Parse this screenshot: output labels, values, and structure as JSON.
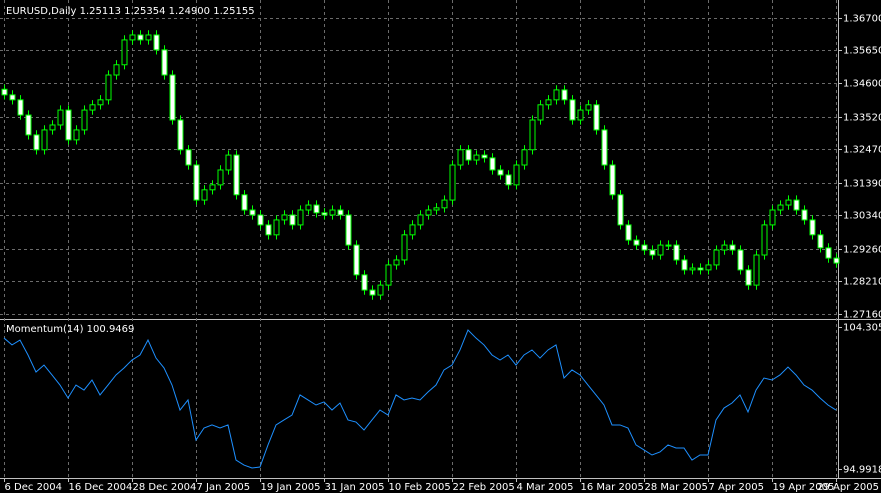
{
  "chart_data": [
    {
      "type": "candlestick",
      "title": "EURUSD,Daily  1.25113 1.25354 1.24900 1.25155",
      "categories": [
        "6 Dec 2004",
        null,
        null,
        null,
        null,
        null,
        null,
        null,
        "16 Dec 2004",
        null,
        null,
        null,
        null,
        null,
        null,
        null,
        "28 Dec 2004",
        null,
        null,
        null,
        null,
        null,
        null,
        null,
        "7 Jan 2005",
        null,
        null,
        null,
        null,
        null,
        null,
        null,
        "19 Jan 2005",
        null,
        null,
        null,
        null,
        null,
        null,
        null,
        "31 Jan 2005",
        null,
        null,
        null,
        null,
        null,
        null,
        null,
        "10 Feb 2005",
        null,
        null,
        null,
        null,
        null,
        null,
        null,
        "22 Feb 2005",
        null,
        null,
        null,
        null,
        null,
        null,
        null,
        "4 Mar 2005",
        null,
        null,
        null,
        null,
        null,
        null,
        null,
        "16 Mar 2005",
        null,
        null,
        null,
        null,
        null,
        null,
        null,
        "28 Mar 2005",
        null,
        null,
        null,
        null,
        null,
        null,
        null,
        "7 Apr 2005",
        null,
        null,
        null,
        null,
        null,
        null,
        null,
        "19 Apr 2005",
        null,
        null,
        null,
        null,
        null,
        null,
        null,
        "29 Apr 2005"
      ],
      "open": [
        1.344,
        1.3422,
        1.3406,
        1.3357,
        1.3293,
        1.3245,
        1.3309,
        1.3325,
        1.3373,
        1.3277,
        1.3309,
        1.3373,
        1.339,
        1.3406,
        1.3486,
        1.3519,
        1.3599,
        1.3615,
        1.3599,
        1.3615,
        1.3567,
        1.3486,
        1.3341,
        1.3245,
        1.3196,
        1.3083,
        1.3116,
        1.3132,
        1.318,
        1.3228,
        1.31,
        1.3051,
        1.3035,
        1.3003,
        1.2971,
        1.3019,
        1.3035,
        1.3003,
        1.3051,
        1.3067,
        1.3042,
        1.3035,
        1.3051,
        1.3035,
        1.2938,
        1.2842,
        1.2793,
        1.2777,
        1.2809,
        1.2874,
        1.289,
        1.2971,
        1.3003,
        1.3035,
        1.3051,
        1.3058,
        1.3083,
        1.3196,
        1.3245,
        1.3212,
        1.3228,
        1.3219,
        1.318,
        1.3164,
        1.3132,
        1.3196,
        1.3245,
        1.3341,
        1.339,
        1.3406,
        1.3438,
        1.3406,
        1.3341,
        1.3373,
        1.339,
        1.3309,
        1.3196,
        1.31,
        1.3003,
        1.2954,
        1.2938,
        1.2922,
        1.2906,
        1.2938,
        1.2938,
        1.289,
        1.2858,
        1.2864,
        1.2858,
        1.2874,
        1.2922,
        1.2938,
        1.2922,
        1.2858,
        1.2809,
        1.2906,
        1.3003,
        1.3051,
        1.3067,
        1.3083,
        1.3051,
        1.3019,
        1.2971,
        1.2929,
        1.2896
      ],
      "high": [
        1.3455,
        1.3437,
        1.3421,
        1.3372,
        1.3308,
        1.3324,
        1.334,
        1.3388,
        1.3388,
        1.3324,
        1.3388,
        1.3405,
        1.3421,
        1.3501,
        1.3534,
        1.3614,
        1.363,
        1.363,
        1.363,
        1.363,
        1.3582,
        1.3501,
        1.3356,
        1.326,
        1.3211,
        1.3131,
        1.3147,
        1.3195,
        1.3243,
        1.3243,
        1.3115,
        1.3066,
        1.305,
        1.3018,
        1.3034,
        1.305,
        1.305,
        1.3066,
        1.3082,
        1.3082,
        1.3057,
        1.3066,
        1.3066,
        1.305,
        1.2953,
        1.2857,
        1.2808,
        1.2824,
        1.2889,
        1.2905,
        1.2986,
        1.3018,
        1.305,
        1.3066,
        1.3073,
        1.3098,
        1.3211,
        1.326,
        1.326,
        1.3243,
        1.3243,
        1.3234,
        1.3195,
        1.3179,
        1.3211,
        1.326,
        1.3356,
        1.3405,
        1.3421,
        1.3453,
        1.3453,
        1.3421,
        1.3388,
        1.3405,
        1.3405,
        1.3324,
        1.3211,
        1.3115,
        1.3018,
        1.2969,
        1.2953,
        1.2937,
        1.2953,
        1.2953,
        1.2953,
        1.2905,
        1.2879,
        1.2879,
        1.2889,
        1.2937,
        1.2953,
        1.2953,
        1.2937,
        1.2873,
        1.2921,
        1.3018,
        1.3066,
        1.3082,
        1.3098,
        1.3098,
        1.3066,
        1.3034,
        1.2986,
        1.2944,
        1.2911
      ],
      "low": [
        1.3407,
        1.3391,
        1.3342,
        1.3278,
        1.323,
        1.323,
        1.3294,
        1.331,
        1.3262,
        1.3262,
        1.3294,
        1.3358,
        1.3375,
        1.3391,
        1.3471,
        1.3504,
        1.3584,
        1.3584,
        1.3584,
        1.3552,
        1.3471,
        1.3326,
        1.323,
        1.3181,
        1.3068,
        1.3068,
        1.3101,
        1.3117,
        1.3165,
        1.3085,
        1.3036,
        1.302,
        1.2988,
        1.2956,
        1.2956,
        1.3004,
        1.2988,
        1.2988,
        1.3036,
        1.3027,
        1.302,
        1.302,
        1.302,
        1.2923,
        1.2827,
        1.2778,
        1.2762,
        1.2762,
        1.2794,
        1.2859,
        1.2875,
        1.2956,
        1.2988,
        1.302,
        1.3036,
        1.3043,
        1.3068,
        1.3181,
        1.3197,
        1.3197,
        1.3204,
        1.3165,
        1.3149,
        1.3117,
        1.3117,
        1.3181,
        1.323,
        1.3326,
        1.3375,
        1.3391,
        1.3391,
        1.3326,
        1.3326,
        1.3358,
        1.3294,
        1.3181,
        1.3085,
        1.2988,
        1.2939,
        1.2923,
        1.2907,
        1.2891,
        1.2891,
        1.2923,
        1.2875,
        1.2843,
        1.2843,
        1.2843,
        1.2843,
        1.2859,
        1.2907,
        1.2907,
        1.2843,
        1.2794,
        1.2794,
        1.2891,
        1.2988,
        1.3036,
        1.3052,
        1.3036,
        1.3004,
        1.2956,
        1.2914,
        1.2881,
        1.2865
      ],
      "close": [
        1.3422,
        1.3406,
        1.3357,
        1.3293,
        1.3245,
        1.3309,
        1.3325,
        1.3373,
        1.3277,
        1.3309,
        1.3373,
        1.339,
        1.3406,
        1.3486,
        1.3519,
        1.3599,
        1.3615,
        1.3599,
        1.3615,
        1.3567,
        1.3486,
        1.3341,
        1.3245,
        1.3196,
        1.3083,
        1.3116,
        1.3132,
        1.318,
        1.3228,
        1.31,
        1.3051,
        1.3035,
        1.3003,
        1.2971,
        1.3019,
        1.3035,
        1.3003,
        1.3051,
        1.3067,
        1.3042,
        1.3035,
        1.3051,
        1.3035,
        1.2938,
        1.2842,
        1.2793,
        1.2777,
        1.2809,
        1.2874,
        1.289,
        1.2971,
        1.3003,
        1.3035,
        1.3051,
        1.3058,
        1.3083,
        1.3196,
        1.3245,
        1.3212,
        1.3228,
        1.3219,
        1.318,
        1.3164,
        1.3132,
        1.3196,
        1.3245,
        1.3341,
        1.339,
        1.3406,
        1.3438,
        1.3406,
        1.3341,
        1.3373,
        1.339,
        1.3309,
        1.3196,
        1.31,
        1.3003,
        1.2954,
        1.2938,
        1.2922,
        1.2906,
        1.2938,
        1.2938,
        1.289,
        1.2858,
        1.2864,
        1.2858,
        1.2874,
        1.2922,
        1.2938,
        1.2922,
        1.2858,
        1.2809,
        1.2906,
        1.3003,
        1.3051,
        1.3067,
        1.3083,
        1.3051,
        1.3019,
        1.2971,
        1.2929,
        1.2896,
        1.288
      ],
      "color": "#00ff00",
      "up_fill": "#000000",
      "down_fill": "#ffffff",
      "ylim": [
        1.2703,
        1.3718
      ],
      "yticks": [
        {
          "value": 1.367,
          "label": "1.36700"
        },
        {
          "value": 1.3565,
          "label": "1.35650"
        },
        {
          "value": 1.346,
          "label": "1.34600"
        },
        {
          "value": 1.3352,
          "label": "1.33520"
        },
        {
          "value": 1.3247,
          "label": "1.32470"
        },
        {
          "value": 1.3139,
          "label": "1.31390"
        },
        {
          "value": 1.3034,
          "label": "1.30340"
        },
        {
          "value": 1.2926,
          "label": "1.29260"
        },
        {
          "value": 1.2821,
          "label": "1.28210"
        },
        {
          "value": 1.2716,
          "label": "1.27160"
        }
      ],
      "grid": true
    },
    {
      "type": "line",
      "title": "Momentum(14) 100.9469",
      "values": [
        103.58,
        103.13,
        103.45,
        102.47,
        101.35,
        101.81,
        101.16,
        100.5,
        99.65,
        100.5,
        100.17,
        100.83,
        99.85,
        100.5,
        101.16,
        101.62,
        102.14,
        102.47,
        103.45,
        102.27,
        101.62,
        100.5,
        98.86,
        99.52,
        96.89,
        97.68,
        97.88,
        97.68,
        97.88,
        95.58,
        95.25,
        95.06,
        95.12,
        96.57,
        97.88,
        98.21,
        98.53,
        99.85,
        99.52,
        99.19,
        99.39,
        98.86,
        99.32,
        98.21,
        98.07,
        97.55,
        98.21,
        98.86,
        98.53,
        99.85,
        99.52,
        99.65,
        99.52,
        100.04,
        100.5,
        101.49,
        101.81,
        102.8,
        104.11,
        103.58,
        103.13,
        102.47,
        102.14,
        102.47,
        101.81,
        102.47,
        102.8,
        102.27,
        102.8,
        103.13,
        100.96,
        101.49,
        101.16,
        100.5,
        99.85,
        99.19,
        97.88,
        97.88,
        97.68,
        96.57,
        96.24,
        95.91,
        96.11,
        96.57,
        96.37,
        96.37,
        95.58,
        95.91,
        95.91,
        98.21,
        98.99,
        99.32,
        99.85,
        98.73,
        100.17,
        100.96,
        100.83,
        101.16,
        101.68,
        101.16,
        100.5,
        100.17,
        99.65,
        99.19,
        98.86
      ],
      "color": "#1e90ff",
      "ylim": [
        94.9918,
        104.3057
      ],
      "yticks": [
        104.3057,
        94.9918
      ]
    }
  ]
}
